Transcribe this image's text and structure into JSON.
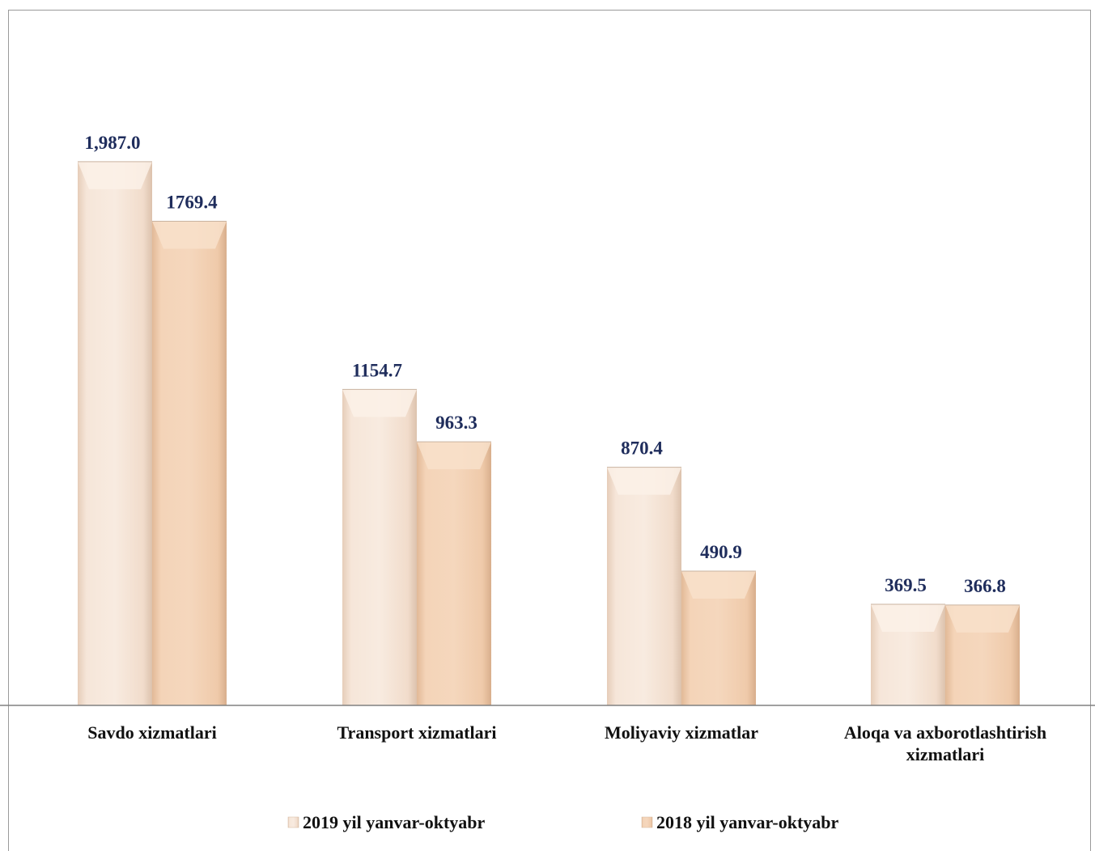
{
  "chart_data": {
    "type": "bar",
    "title": "",
    "xlabel": "",
    "ylabel": "",
    "ylim": [
      0,
      2300
    ],
    "grid": false,
    "legend_position": "bottom",
    "categories": [
      [
        "Savdo xizmatlari"
      ],
      [
        "Transport xizmatlari"
      ],
      [
        "Moliyaviy xizmatlar"
      ],
      [
        "Aloqa va axborotlashtirish",
        "xizmatlari"
      ]
    ],
    "series": [
      {
        "name": "2019 yil yanvar-oktyabr",
        "values": [
          1987.0,
          1154.7,
          870.4,
          369.5
        ],
        "labels": [
          "1,987.0",
          "1154.7",
          "870.4",
          "369.5"
        ],
        "color": "#f3dcc9"
      },
      {
        "name": "2018 yil yanvar-oktyabr",
        "values": [
          1769.4,
          963.3,
          490.9,
          366.8
        ],
        "labels": [
          "1769.4",
          "963.3",
          "490.9",
          "366.8"
        ],
        "color": "#f2c9a6"
      }
    ],
    "label_color": "#1f2d5c",
    "axis_color": "#808080"
  }
}
